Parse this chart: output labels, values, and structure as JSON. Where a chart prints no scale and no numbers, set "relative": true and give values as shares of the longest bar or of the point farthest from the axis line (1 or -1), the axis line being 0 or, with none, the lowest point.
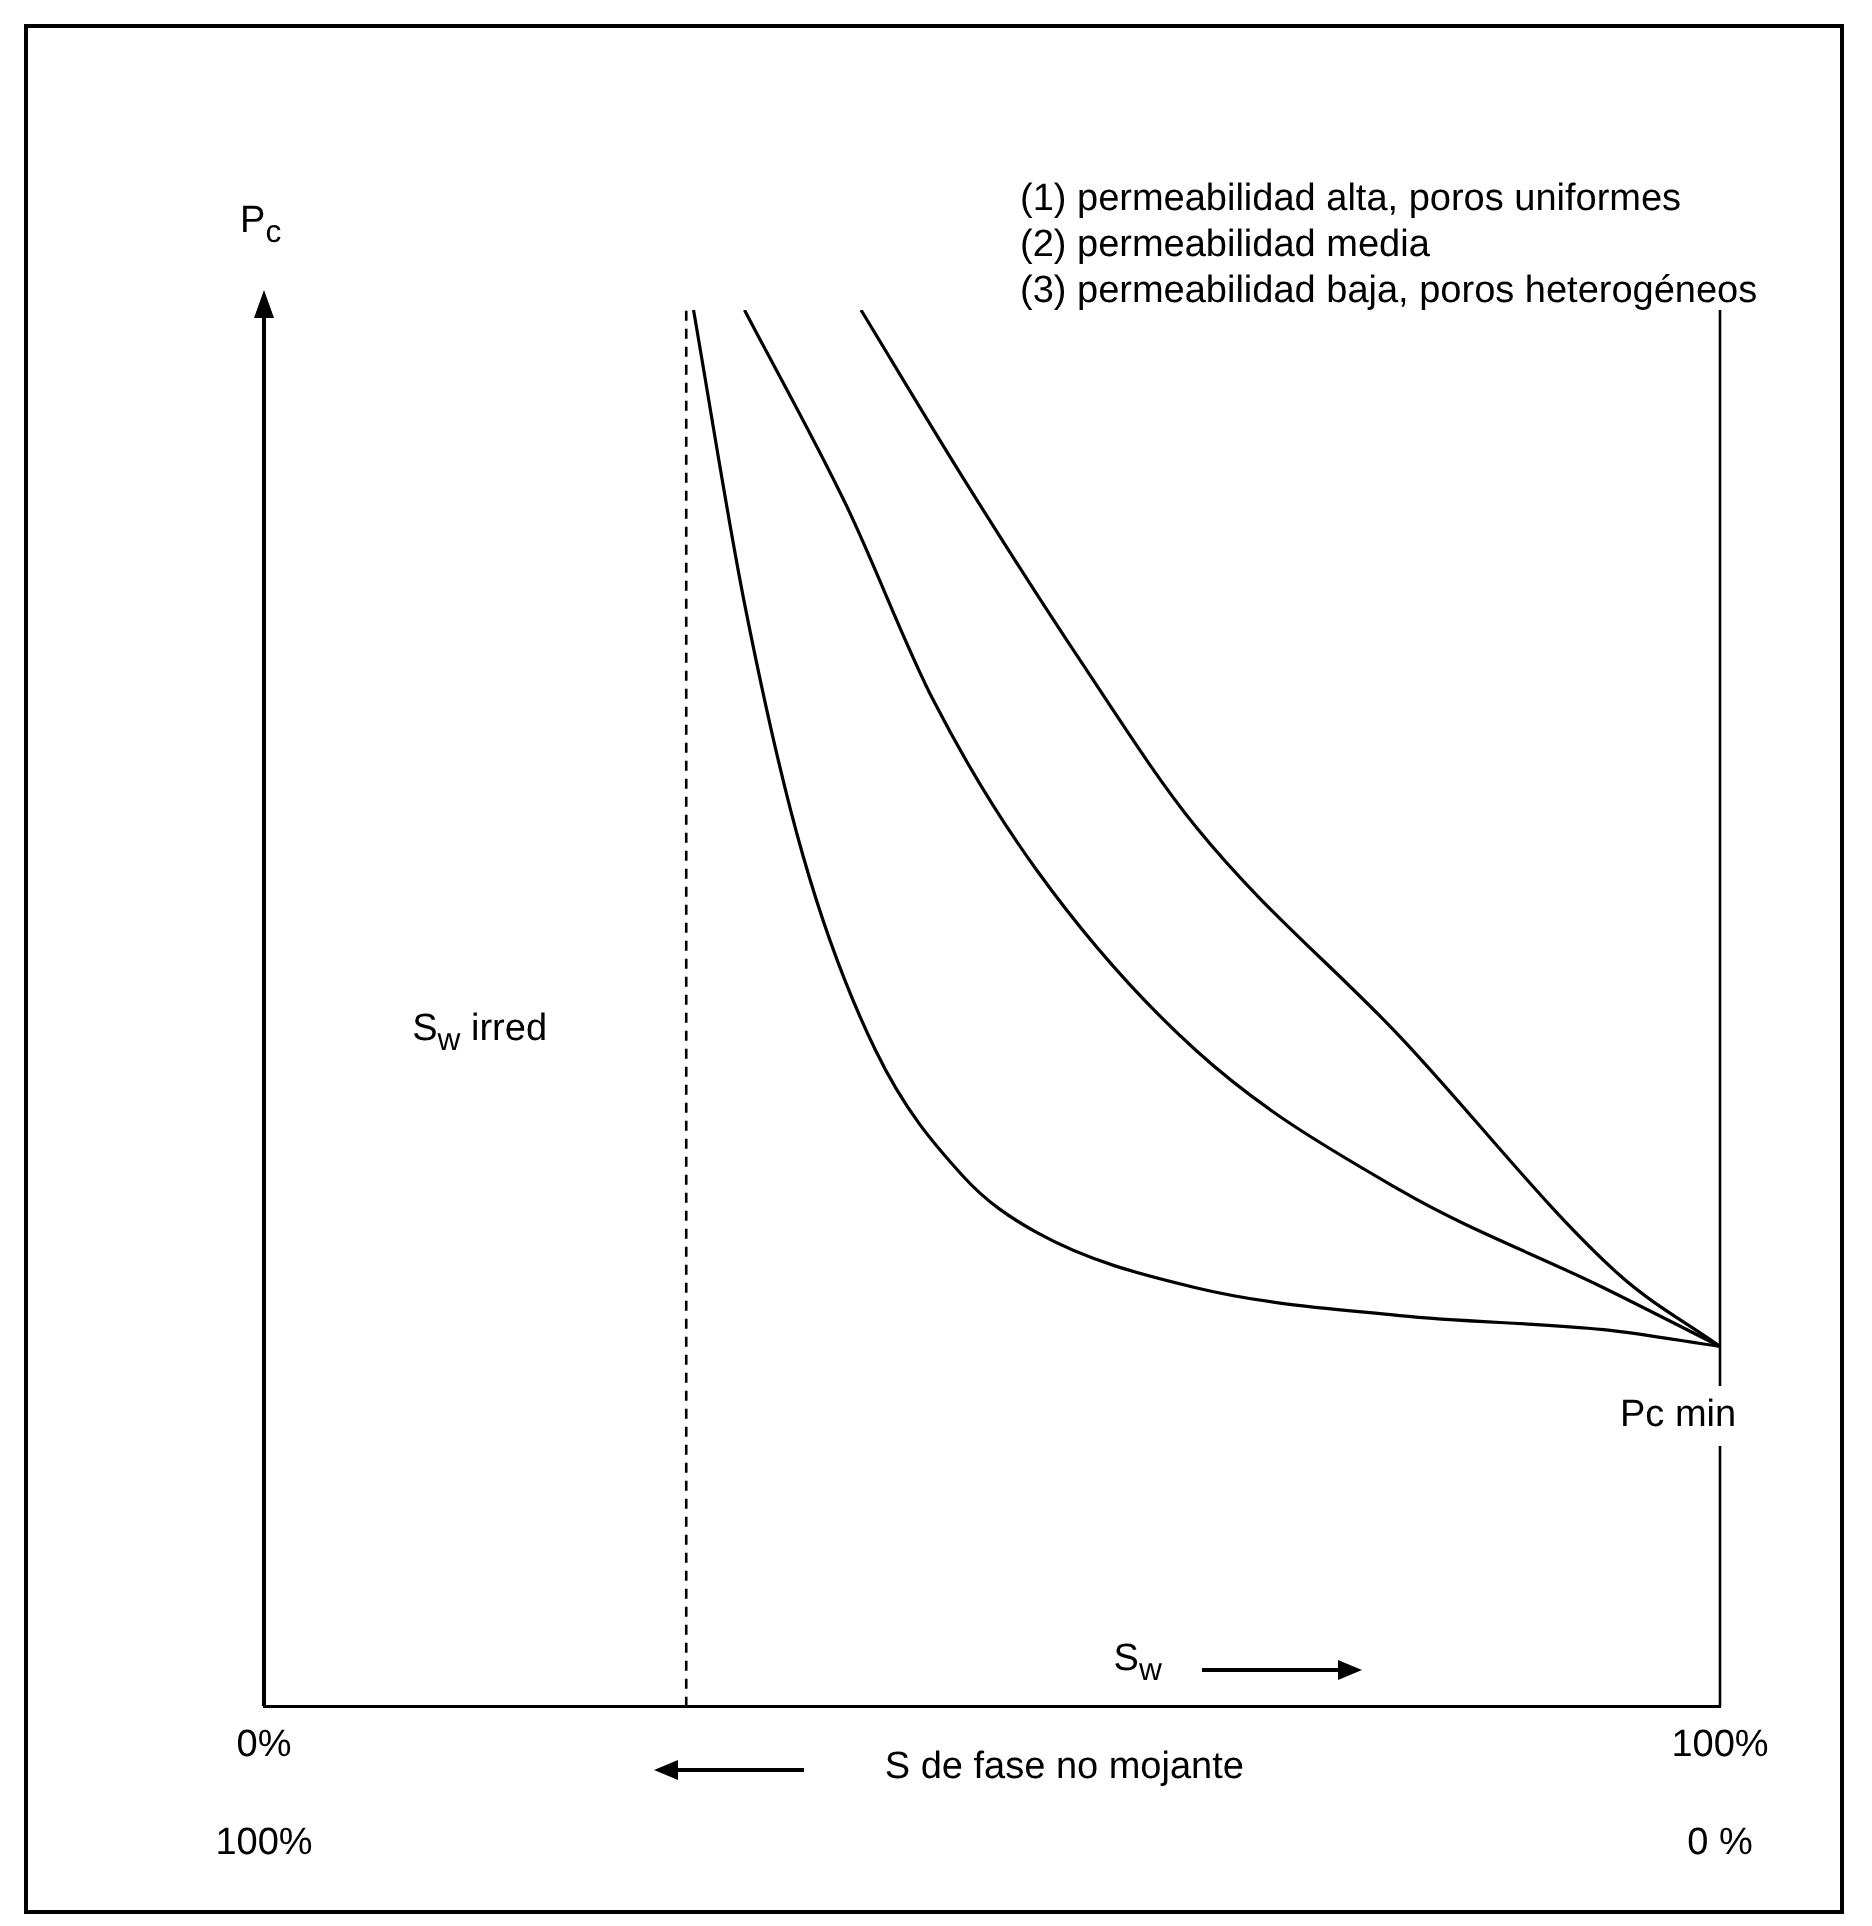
{
  "chart_data": {
    "type": "line",
    "relative": true,
    "xlabel": "S$_{w}$",
    "ylabel": "P$_{c}$",
    "x2label": "S de fase no mojante",
    "xlim": [
      0,
      100
    ],
    "xticks": [
      {
        "value": 0,
        "label": "0%"
      },
      {
        "value": 100,
        "label": "100%"
      }
    ],
    "x2lim": [
      100,
      0
    ],
    "x2ticks": [
      {
        "value": 100,
        "label": "100%"
      },
      {
        "value": 0,
        "label": "0 %"
      }
    ],
    "series": [
      {
        "color": "#000000",
        "x": [
          29.5,
          33,
          37,
          42,
          48,
          53,
          64,
          78,
          92,
          100
        ],
        "values": [
          1.0,
          0.79,
          0.61,
          0.47,
          0.38,
          0.34,
          0.3,
          0.28,
          0.27,
          0.258
        ]
      },
      {
        "color": "#000000",
        "x": [
          33,
          40,
          46,
          53,
          64,
          78,
          92,
          100
        ],
        "values": [
          1.0,
          0.86,
          0.72,
          0.6,
          0.47,
          0.37,
          0.3,
          0.258
        ]
      },
      {
        "color": "#000000",
        "x": [
          41,
          48,
          56,
          64,
          78,
          93,
          100
        ],
        "values": [
          1.0,
          0.88,
          0.75,
          0.63,
          0.48,
          0.31,
          0.258
        ]
      }
    ],
    "ref_lines": [
      {
        "axis": "x",
        "value": 29,
        "label": "S$_{w}$ irred",
        "line_style": "dashed",
        "color": "#000000"
      },
      {
        "axis": "x",
        "value": 100,
        "color": "#000000",
        "line_style": "solid"
      }
    ],
    "annotations": [
      "(1)  permeabilidad alta, poros uniformes",
      "(2)  permeabilidad media",
      "(3)  permeabilidad baja, poros heterogéneos",
      {
        "text": "Pc min",
        "x": 100,
        "y": 0.258
      }
    ],
    "marker": "none",
    "line_style": "solid"
  }
}
